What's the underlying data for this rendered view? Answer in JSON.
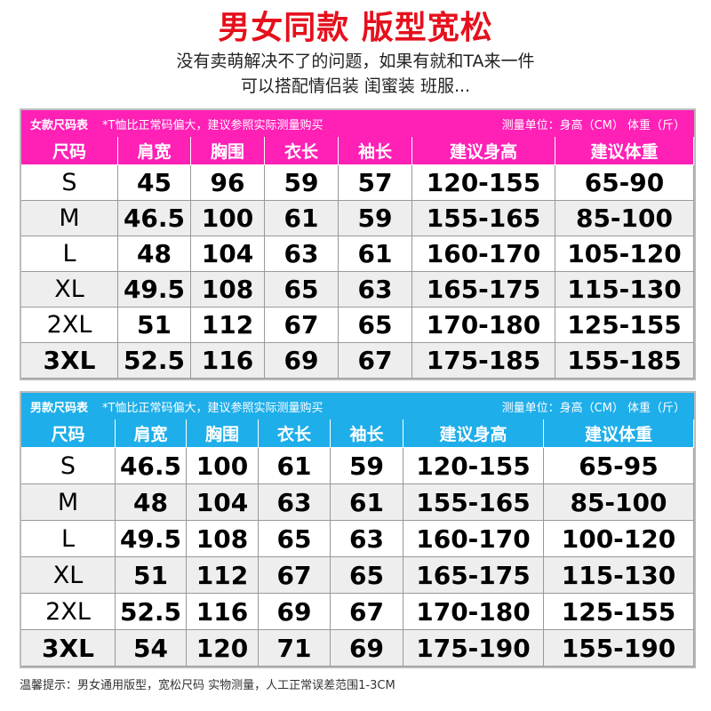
{
  "title": "男女同款 版型宽松",
  "subtitle_lines": [
    "没有卖萌解决不了的问题，如果有就和TA来一件",
    "可以搭配情侣装 闺蜜装 班服..."
  ],
  "colors": {
    "title": "#e5101d",
    "women": "#ff20b6",
    "men": "#1eaeea"
  },
  "headers": [
    "尺码",
    "肩宽",
    "胸围",
    "衣长",
    "袖长",
    "建议身高",
    "建议体重"
  ],
  "women": {
    "name": "女款尺码表",
    "note": "*T恤比正常码偏大，建议参照实际测量购买",
    "unit": "测量单位：身高（CM） 体重（斤）",
    "rows": [
      [
        "S",
        "45",
        "96",
        "59",
        "57",
        "120-155",
        "65-90"
      ],
      [
        "M",
        "46.5",
        "100",
        "61",
        "59",
        "155-165",
        "85-100"
      ],
      [
        "L",
        "48",
        "104",
        "63",
        "61",
        "160-170",
        "105-120"
      ],
      [
        "XL",
        "49.5",
        "108",
        "65",
        "63",
        "165-175",
        "115-130"
      ],
      [
        "2XL",
        "51",
        "112",
        "67",
        "65",
        "170-180",
        "125-155"
      ],
      [
        "3XL",
        "52.5",
        "116",
        "69",
        "67",
        "175-185",
        "155-185"
      ]
    ]
  },
  "men": {
    "name": "男款尺码表",
    "note": "*T恤比正常码偏大，建议参照实际测量购买",
    "unit": "测量单位：身高（CM） 体重（斤）",
    "rows": [
      [
        "S",
        "46.5",
        "100",
        "61",
        "59",
        "120-155",
        "65-95"
      ],
      [
        "M",
        "48",
        "104",
        "63",
        "61",
        "155-165",
        "85-100"
      ],
      [
        "L",
        "49.5",
        "108",
        "65",
        "63",
        "160-170",
        "100-120"
      ],
      [
        "XL",
        "51",
        "112",
        "67",
        "65",
        "165-175",
        "115-130"
      ],
      [
        "2XL",
        "52.5",
        "116",
        "69",
        "67",
        "170-180",
        "125-155"
      ],
      [
        "3XL",
        "54",
        "120",
        "71",
        "69",
        "175-190",
        "155-190"
      ]
    ]
  },
  "footer": "温馨提示：男女通用版型，宽松尺码 实物测量，人工正常误差范围1-3CM"
}
